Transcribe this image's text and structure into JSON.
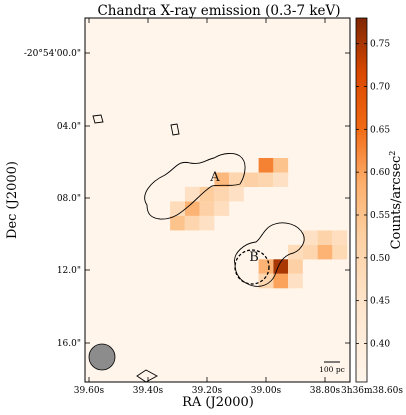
{
  "chart_data": {
    "type": "heatmap",
    "title": "Chandra X-ray emission (0.3-7 keV)",
    "xlabel": "RA (J2000)",
    "ylabel": "Dec (J2000)",
    "x_ticks": [
      "39.60s",
      "39.40s",
      "39.20s",
      "39.00s",
      "38.80s",
      "3h36m38.60s"
    ],
    "y_ticks": [
      "-20°54'00.0\"",
      "04.0\"",
      "08.0\"",
      "12.0\"",
      "16.0\""
    ],
    "colorbar": {
      "label": "Counts/arcsec",
      "label_superscript": "2",
      "ticks": [
        "0.40",
        "0.45",
        "0.50",
        "0.55",
        "0.60",
        "0.65",
        "0.70",
        "0.75"
      ],
      "range": [
        0.355,
        0.78
      ],
      "low_color": "#fff5eb",
      "high_color": "#7f2704"
    },
    "sources": [
      {
        "name": "A",
        "ra_s": 39.05,
        "dec_arcsec": 7.3
      },
      {
        "name": "B",
        "ra_s": 38.95,
        "dec_arcsec": 11.4
      }
    ],
    "scale_bar": "100 pc",
    "pixels": [
      {
        "ra": 39.3,
        "dec": 9.4,
        "v": 0.55
      },
      {
        "ra": 39.25,
        "dec": 9.4,
        "v": 0.5
      },
      {
        "ra": 39.2,
        "dec": 9.4,
        "v": 0.46
      },
      {
        "ra": 39.3,
        "dec": 8.6,
        "v": 0.48
      },
      {
        "ra": 39.25,
        "dec": 8.6,
        "v": 0.58
      },
      {
        "ra": 39.2,
        "dec": 8.6,
        "v": 0.52
      },
      {
        "ra": 39.15,
        "dec": 8.6,
        "v": 0.47
      },
      {
        "ra": 39.25,
        "dec": 7.8,
        "v": 0.46
      },
      {
        "ra": 39.2,
        "dec": 7.8,
        "v": 0.53
      },
      {
        "ra": 39.15,
        "dec": 7.8,
        "v": 0.5
      },
      {
        "ra": 39.1,
        "dec": 7.8,
        "v": 0.46
      },
      {
        "ra": 39.15,
        "dec": 7.0,
        "v": 0.57
      },
      {
        "ra": 39.1,
        "dec": 7.0,
        "v": 0.5
      },
      {
        "ra": 39.05,
        "dec": 7.0,
        "v": 0.52
      },
      {
        "ra": 39.0,
        "dec": 7.0,
        "v": 0.5
      },
      {
        "ra": 38.95,
        "dec": 7.0,
        "v": 0.46
      },
      {
        "ra": 39.0,
        "dec": 6.2,
        "v": 0.63
      },
      {
        "ra": 38.95,
        "dec": 6.2,
        "v": 0.55
      },
      {
        "ra": 38.85,
        "dec": 10.2,
        "v": 0.46
      },
      {
        "ra": 38.8,
        "dec": 10.2,
        "v": 0.51
      },
      {
        "ra": 38.75,
        "dec": 10.2,
        "v": 0.47
      },
      {
        "ra": 38.9,
        "dec": 11.0,
        "v": 0.48
      },
      {
        "ra": 38.85,
        "dec": 11.0,
        "v": 0.5
      },
      {
        "ra": 38.8,
        "dec": 11.0,
        "v": 0.58
      },
      {
        "ra": 38.75,
        "dec": 11.0,
        "v": 0.49
      },
      {
        "ra": 39.0,
        "dec": 11.8,
        "v": 0.58
      },
      {
        "ra": 38.95,
        "dec": 11.8,
        "v": 0.75
      },
      {
        "ra": 38.9,
        "dec": 11.8,
        "v": 0.52
      },
      {
        "ra": 39.0,
        "dec": 12.6,
        "v": 0.5
      },
      {
        "ra": 38.95,
        "dec": 12.6,
        "v": 0.6
      },
      {
        "ra": 38.9,
        "dec": 12.6,
        "v": 0.46
      }
    ]
  }
}
